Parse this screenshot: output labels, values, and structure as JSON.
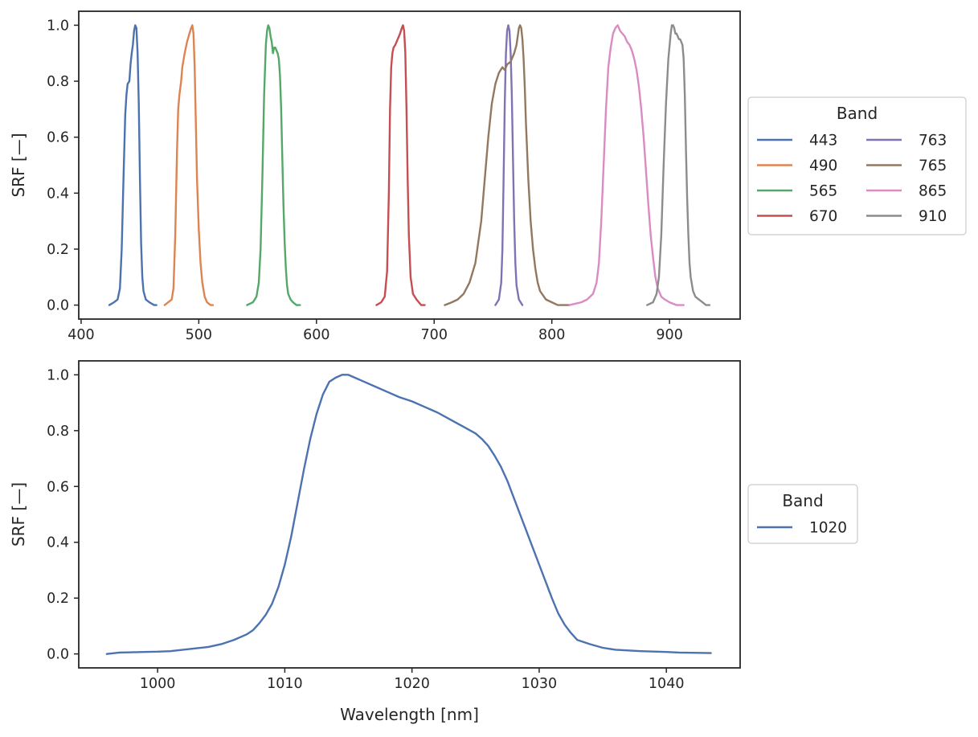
{
  "chart_data": [
    {
      "type": "line",
      "xlabel": "",
      "ylabel": "SRF [—]",
      "xlim": [
        398,
        960
      ],
      "ylim": [
        -0.05,
        1.05
      ],
      "xticks": [
        400,
        500,
        600,
        700,
        800,
        900
      ],
      "yticks": [
        0.0,
        0.2,
        0.4,
        0.6,
        0.8,
        1.0
      ],
      "grid": false,
      "legend": {
        "title": "Band",
        "placement": "right",
        "columns": 2
      },
      "series": [
        {
          "name": "443",
          "color": "#4c72b0",
          "x": [
            424,
            428,
            431,
            433,
            434.5,
            436,
            437.5,
            438.5,
            439.5,
            441,
            442,
            443,
            444,
            445,
            446,
            447,
            448,
            449,
            450,
            451,
            452,
            453,
            455,
            458,
            462,
            464
          ],
          "y": [
            0.0,
            0.01,
            0.02,
            0.06,
            0.2,
            0.45,
            0.68,
            0.75,
            0.79,
            0.8,
            0.86,
            0.9,
            0.93,
            0.98,
            1.0,
            0.99,
            0.9,
            0.72,
            0.45,
            0.22,
            0.1,
            0.05,
            0.02,
            0.01,
            0.0,
            0.0
          ]
        },
        {
          "name": "490",
          "color": "#dd8452",
          "x": [
            471,
            474,
            477,
            478.5,
            480,
            481.5,
            482.5,
            483.5,
            485,
            486,
            488,
            490,
            492,
            493.5,
            494.5,
            495.5,
            496.5,
            497.5,
            498.5,
            500,
            501.5,
            503,
            505,
            507,
            510,
            512
          ],
          "y": [
            0.0,
            0.01,
            0.02,
            0.06,
            0.25,
            0.55,
            0.7,
            0.75,
            0.8,
            0.85,
            0.9,
            0.94,
            0.97,
            0.99,
            1.0,
            0.97,
            0.85,
            0.65,
            0.45,
            0.27,
            0.15,
            0.08,
            0.03,
            0.01,
            0.0,
            0.0
          ]
        },
        {
          "name": "565",
          "color": "#55a868",
          "x": [
            541,
            546,
            549,
            551,
            552.5,
            554,
            555.5,
            557,
            558,
            559,
            560,
            561,
            562,
            563,
            564,
            565,
            566,
            567,
            568,
            569,
            570,
            571,
            572,
            573,
            574,
            575,
            576,
            578,
            580,
            583,
            586
          ],
          "y": [
            0.0,
            0.01,
            0.03,
            0.08,
            0.2,
            0.45,
            0.75,
            0.93,
            0.98,
            1.0,
            0.99,
            0.96,
            0.94,
            0.9,
            0.92,
            0.92,
            0.91,
            0.9,
            0.88,
            0.82,
            0.7,
            0.52,
            0.35,
            0.22,
            0.13,
            0.07,
            0.04,
            0.02,
            0.01,
            0.0,
            0.0
          ]
        },
        {
          "name": "670",
          "color": "#c44e52",
          "x": [
            651,
            655,
            658,
            660,
            661.5,
            662.5,
            663.5,
            664.5,
            665.5,
            667,
            669,
            671,
            672.5,
            673.5,
            674.5,
            675.5,
            676.5,
            677.5,
            678.5,
            680,
            682,
            685,
            689,
            692
          ],
          "y": [
            0.0,
            0.01,
            0.03,
            0.12,
            0.4,
            0.7,
            0.85,
            0.9,
            0.92,
            0.93,
            0.95,
            0.97,
            0.99,
            1.0,
            0.98,
            0.9,
            0.7,
            0.45,
            0.25,
            0.1,
            0.04,
            0.02,
            0.0,
            0.0
          ]
        },
        {
          "name": "763",
          "color": "#8172b3",
          "x": [
            752,
            755,
            757,
            758,
            759,
            760,
            761,
            762,
            763,
            764,
            765,
            766,
            767,
            768,
            769,
            770,
            772,
            775
          ],
          "y": [
            0.0,
            0.02,
            0.08,
            0.2,
            0.45,
            0.72,
            0.9,
            0.98,
            1.0,
            0.98,
            0.9,
            0.75,
            0.52,
            0.3,
            0.15,
            0.07,
            0.02,
            0.0
          ]
        },
        {
          "name": "765",
          "color": "#937860",
          "x": [
            709,
            715,
            720,
            725,
            730,
            735,
            740,
            743,
            746,
            749,
            752,
            755,
            758,
            760,
            762,
            765,
            768,
            770,
            772,
            773,
            774,
            775,
            776,
            777,
            778,
            780,
            782,
            784,
            786,
            788,
            790,
            795,
            800,
            805,
            810,
            815
          ],
          "y": [
            0.0,
            0.01,
            0.02,
            0.04,
            0.08,
            0.15,
            0.3,
            0.45,
            0.6,
            0.72,
            0.79,
            0.83,
            0.85,
            0.84,
            0.86,
            0.87,
            0.9,
            0.93,
            0.99,
            1.0,
            0.99,
            0.95,
            0.88,
            0.78,
            0.65,
            0.45,
            0.3,
            0.2,
            0.13,
            0.08,
            0.05,
            0.02,
            0.01,
            0.0,
            0.0,
            0.0
          ]
        },
        {
          "name": "865",
          "color": "#da8bc3",
          "x": [
            815,
            825,
            830,
            835,
            838,
            840,
            842,
            844,
            846,
            848,
            850,
            852,
            854,
            856,
            857,
            858,
            860,
            862,
            864,
            866,
            868,
            870,
            872,
            874,
            876,
            878,
            880,
            882,
            884,
            886,
            888,
            890,
            893,
            896,
            900,
            906,
            912
          ],
          "y": [
            0.0,
            0.01,
            0.02,
            0.04,
            0.08,
            0.15,
            0.3,
            0.5,
            0.7,
            0.85,
            0.92,
            0.97,
            0.99,
            1.0,
            0.99,
            0.98,
            0.97,
            0.96,
            0.94,
            0.93,
            0.91,
            0.88,
            0.84,
            0.78,
            0.7,
            0.6,
            0.48,
            0.36,
            0.25,
            0.17,
            0.1,
            0.06,
            0.03,
            0.02,
            0.01,
            0.0,
            0.0
          ]
        },
        {
          "name": "910",
          "color": "#8c8c8c",
          "x": [
            881,
            886,
            889,
            891,
            893,
            895,
            897,
            899,
            901,
            902,
            903,
            904,
            905,
            906,
            907,
            908,
            909,
            910,
            911,
            912,
            913,
            914,
            915,
            916,
            917,
            918,
            920,
            922,
            925,
            928,
            931,
            934
          ],
          "y": [
            0.0,
            0.01,
            0.04,
            0.1,
            0.25,
            0.5,
            0.72,
            0.88,
            0.97,
            1.0,
            1.0,
            0.99,
            0.97,
            0.97,
            0.96,
            0.95,
            0.95,
            0.94,
            0.93,
            0.88,
            0.75,
            0.55,
            0.38,
            0.25,
            0.15,
            0.1,
            0.05,
            0.03,
            0.02,
            0.01,
            0.0,
            0.0
          ]
        }
      ]
    },
    {
      "type": "line",
      "xlabel": "Wavelength [nm]",
      "ylabel": "SRF [—]",
      "xlim": [
        993.8,
        1045.8
      ],
      "ylim": [
        -0.05,
        1.05
      ],
      "xticks": [
        1000,
        1010,
        1020,
        1030,
        1040
      ],
      "yticks": [
        0.0,
        0.2,
        0.4,
        0.6,
        0.8,
        1.0
      ],
      "grid": false,
      "legend": {
        "title": "Band",
        "placement": "right",
        "columns": 1
      },
      "series": [
        {
          "name": "1020",
          "color": "#4c72b0",
          "x": [
            996,
            997,
            999,
            1000,
            1001,
            1002,
            1003,
            1004,
            1005,
            1006,
            1007,
            1007.5,
            1008,
            1008.5,
            1009,
            1009.5,
            1010,
            1010.5,
            1011,
            1011.5,
            1012,
            1012.5,
            1013,
            1013.5,
            1014,
            1014.5,
            1015,
            1015.5,
            1016,
            1017,
            1018,
            1019,
            1020,
            1021,
            1022,
            1023,
            1024,
            1025,
            1025.5,
            1026,
            1026.5,
            1027,
            1027.5,
            1028,
            1028.5,
            1029,
            1029.5,
            1030,
            1030.5,
            1031,
            1031.5,
            1032,
            1032.5,
            1033,
            1034,
            1035,
            1036,
            1038,
            1040,
            1041,
            1043.5
          ],
          "y": [
            0.0,
            0.005,
            0.007,
            0.008,
            0.01,
            0.015,
            0.02,
            0.025,
            0.035,
            0.05,
            0.07,
            0.085,
            0.11,
            0.14,
            0.18,
            0.24,
            0.32,
            0.42,
            0.54,
            0.66,
            0.77,
            0.86,
            0.93,
            0.975,
            0.99,
            1.0,
            1.0,
            0.99,
            0.98,
            0.96,
            0.94,
            0.92,
            0.905,
            0.885,
            0.865,
            0.84,
            0.815,
            0.79,
            0.77,
            0.745,
            0.71,
            0.67,
            0.62,
            0.56,
            0.5,
            0.44,
            0.38,
            0.32,
            0.26,
            0.2,
            0.145,
            0.105,
            0.075,
            0.05,
            0.035,
            0.022,
            0.015,
            0.01,
            0.007,
            0.005,
            0.003
          ]
        }
      ]
    }
  ]
}
